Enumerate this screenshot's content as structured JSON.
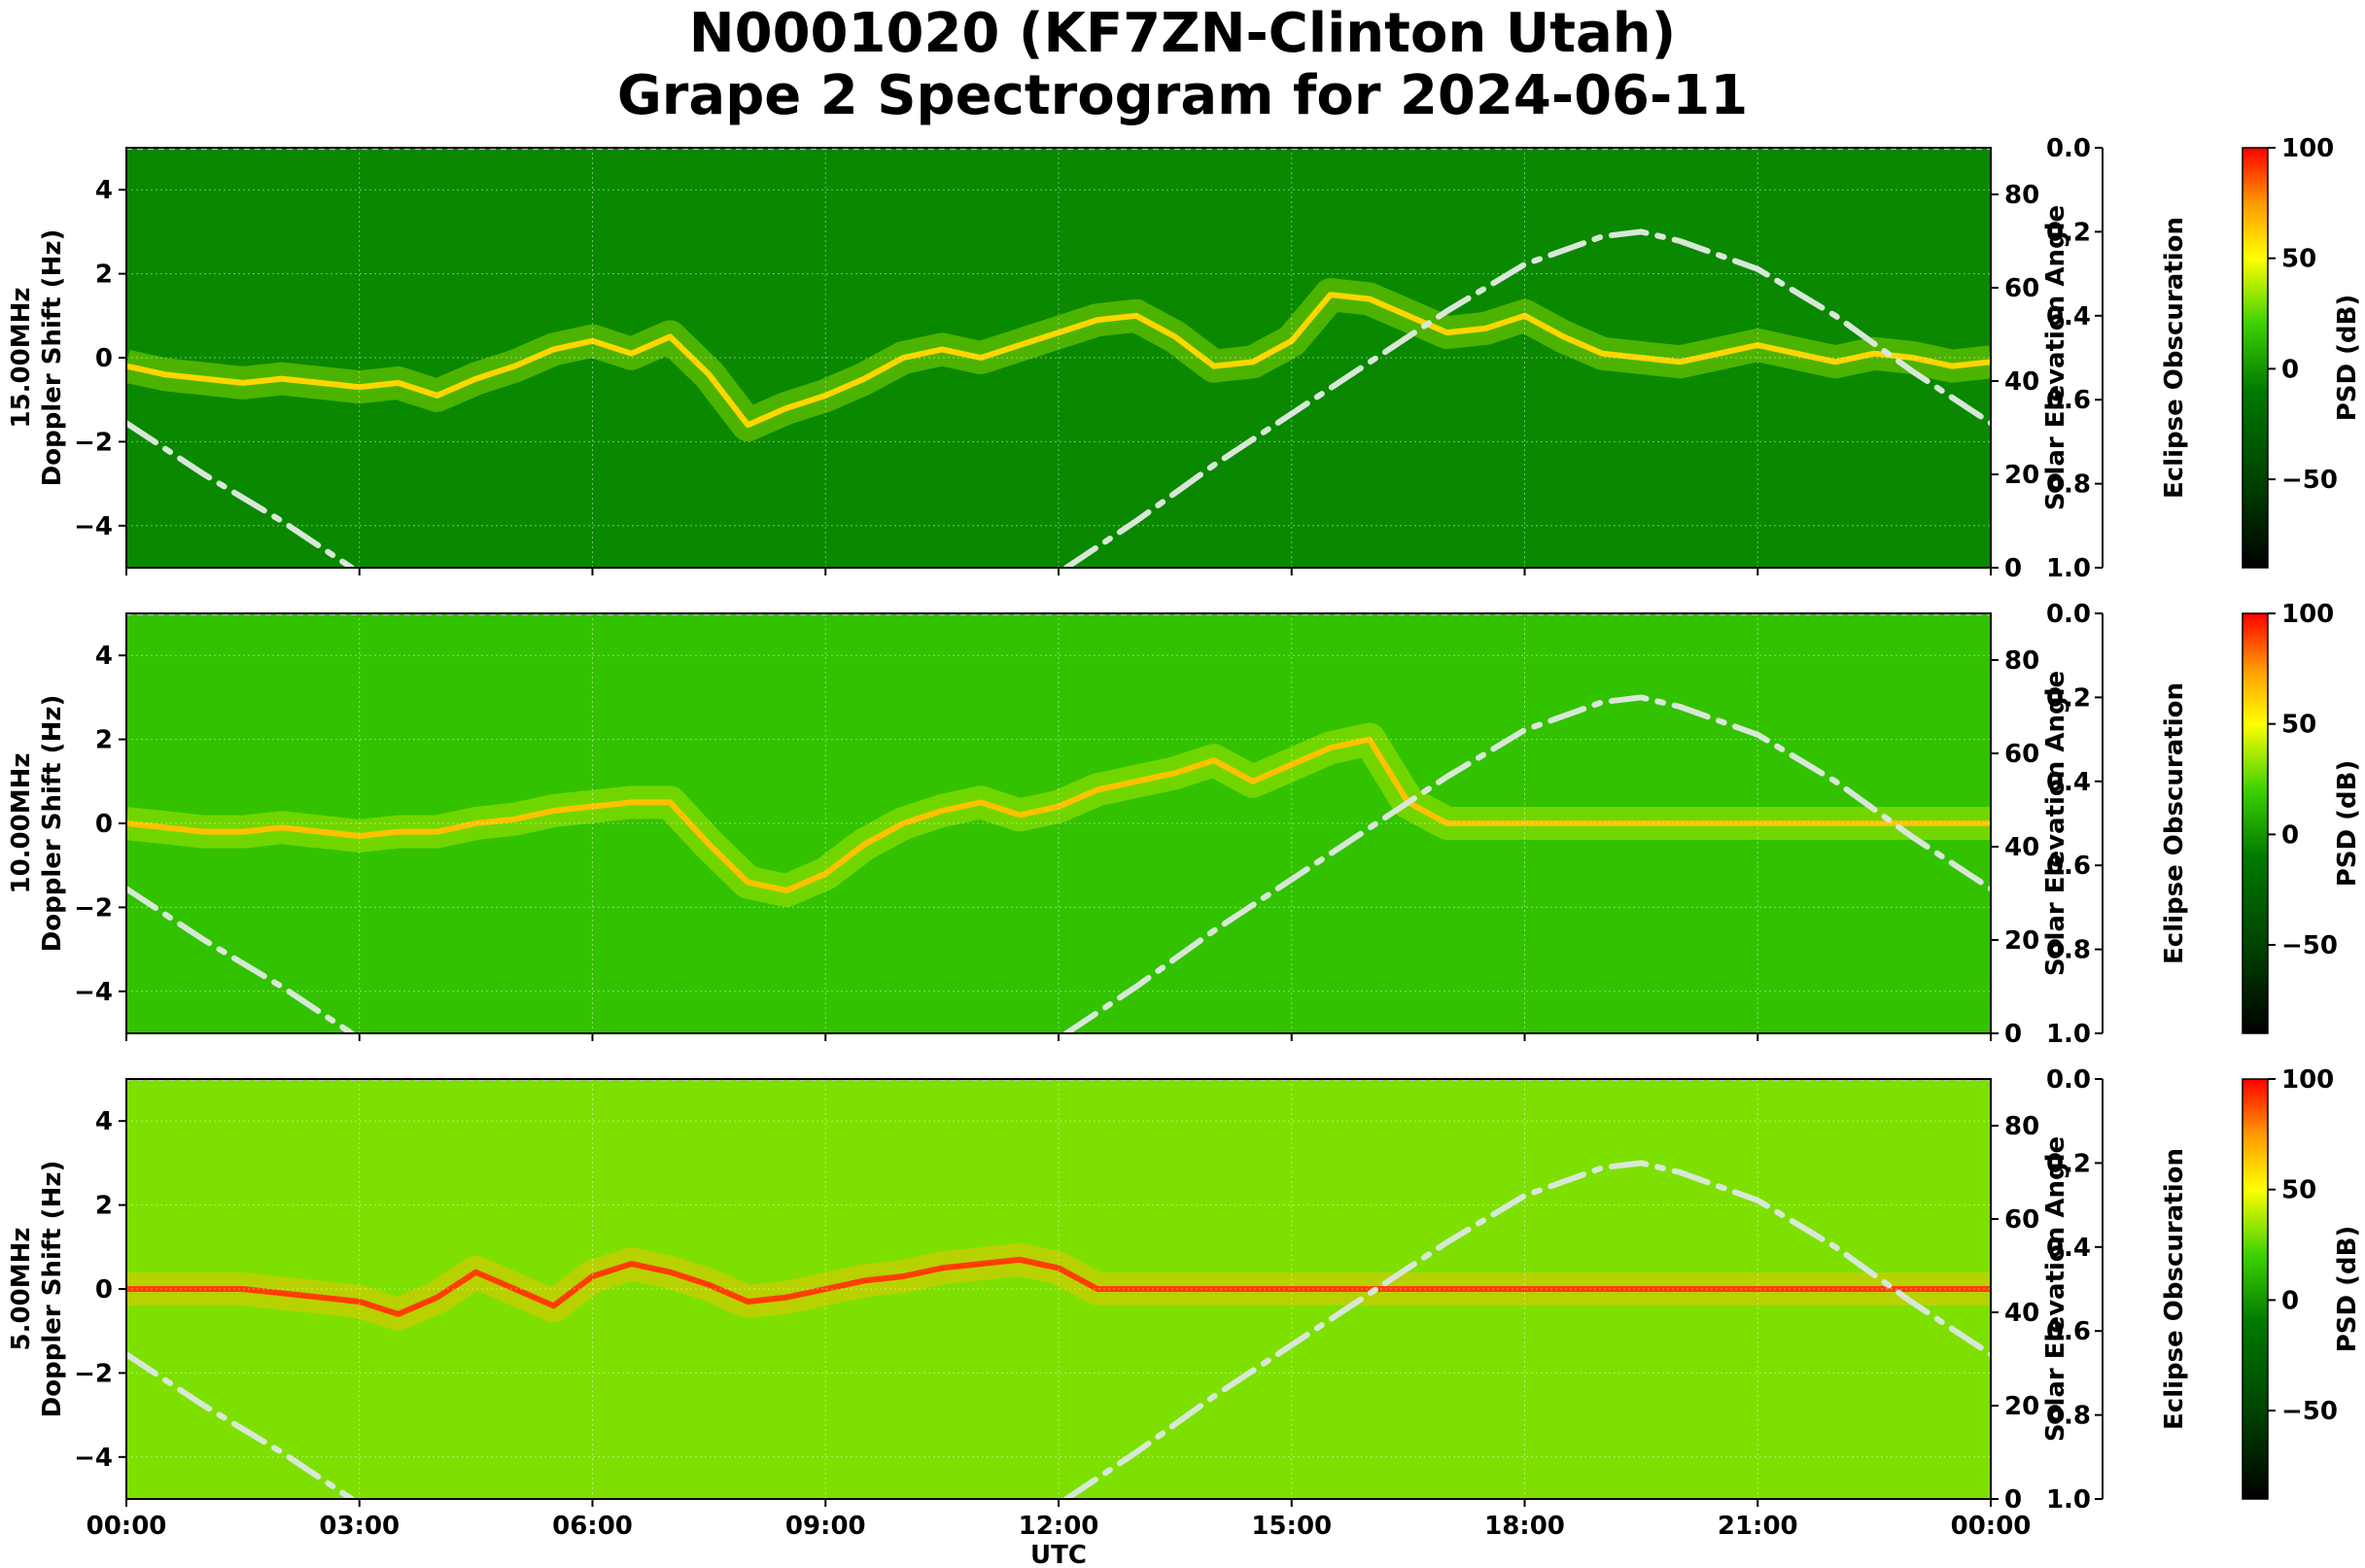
{
  "figure": {
    "title_line1": "N0001020 (KF7ZN-Clinton Utah)",
    "title_line2": "Grape 2 Spectrogram for 2024-06-11"
  },
  "colors": {
    "green": "#007a00",
    "bright_green": "#3cd000",
    "yellow": "#ffff00",
    "orange": "#ff9900",
    "red": "#ff0000",
    "black": "#000000",
    "solar_curve": "#d8e8d8"
  },
  "chart_data": [
    {
      "type": "heatmap",
      "name": "15.00MHz",
      "ylabel": "15.00MHz\nDoppler Shift (Hz)",
      "xlabel": "",
      "ylim": [
        -5,
        5
      ],
      "yticks": [
        -4,
        -2,
        0,
        2,
        4
      ],
      "xlim_hours": [
        0,
        24
      ],
      "x_tick_labels": [
        "00:00",
        "03:00",
        "06:00",
        "09:00",
        "12:00",
        "15:00",
        "18:00",
        "21:00",
        "00:00"
      ],
      "grid": true,
      "background_psd_db": -5,
      "doppler_trace": {
        "hours": [
          0,
          0.5,
          1,
          1.5,
          2,
          2.5,
          3,
          3.5,
          4,
          4.5,
          5,
          5.5,
          6,
          6.5,
          7,
          7.5,
          8,
          8.5,
          9,
          9.5,
          10,
          10.5,
          11,
          11.5,
          12,
          12.5,
          13,
          13.5,
          14,
          14.5,
          15,
          15.5,
          16,
          16.5,
          17,
          17.5,
          18,
          18.5,
          19,
          19.5,
          20,
          20.5,
          21,
          21.5,
          22,
          22.5,
          23,
          23.5,
          24
        ],
        "shift_hz": [
          -0.2,
          -0.4,
          -0.5,
          -0.6,
          -0.5,
          -0.6,
          -0.7,
          -0.6,
          -0.9,
          -0.5,
          -0.2,
          0.2,
          0.4,
          0.1,
          0.5,
          -0.4,
          -1.6,
          -1.2,
          -0.9,
          -0.5,
          0.0,
          0.2,
          0.0,
          0.3,
          0.6,
          0.9,
          1.0,
          0.5,
          -0.2,
          -0.1,
          0.4,
          1.5,
          1.4,
          1.0,
          0.6,
          0.7,
          1.0,
          0.5,
          0.1,
          0.0,
          -0.1,
          0.1,
          0.3,
          0.1,
          -0.1,
          0.1,
          0.0,
          -0.2,
          -0.1
        ],
        "psd_db": 60
      },
      "solar_elevation": {
        "axis_label": "Solar Elevation Angle",
        "ylim": [
          0,
          90
        ],
        "ticks": [
          0,
          20,
          40,
          60,
          80
        ],
        "hours": [
          0,
          1,
          2,
          2.9,
          12.1,
          13,
          14,
          15,
          16,
          17,
          18,
          19,
          19.5,
          20,
          21,
          22,
          23,
          24
        ],
        "degrees": [
          31,
          20,
          10,
          0,
          0,
          10,
          22,
          33,
          44,
          55,
          65,
          71,
          72,
          70,
          64,
          54,
          42,
          31
        ]
      },
      "eclipse_axis": {
        "label": "Eclipse Obscuration",
        "range": [
          1.0,
          0.0
        ],
        "ticks": [
          "0.0",
          "0.2",
          "0.4",
          "0.6",
          "0.8",
          "1.0"
        ]
      },
      "colorbar": {
        "label": "PSD (dB)",
        "range": [
          -90,
          100
        ],
        "ticks": [
          100,
          50,
          0,
          -50
        ],
        "tick_labels": [
          "100",
          "50",
          "0",
          "−50"
        ]
      }
    },
    {
      "type": "heatmap",
      "name": "10.00MHz",
      "ylabel": "10.00MHz\nDoppler Shift (Hz)",
      "xlabel": "",
      "ylim": [
        -5,
        5
      ],
      "yticks": [
        -4,
        -2,
        0,
        2,
        4
      ],
      "xlim_hours": [
        0,
        24
      ],
      "x_tick_labels": [
        "00:00",
        "03:00",
        "06:00",
        "09:00",
        "12:00",
        "15:00",
        "18:00",
        "21:00",
        "00:00"
      ],
      "grid": true,
      "background_psd_db": 15,
      "doppler_trace": {
        "hours": [
          0,
          0.5,
          1,
          1.5,
          2,
          2.5,
          3,
          3.5,
          4,
          4.5,
          5,
          5.5,
          6,
          6.5,
          7,
          7.5,
          8,
          8.5,
          9,
          9.5,
          10,
          10.5,
          11,
          11.5,
          12,
          12.5,
          13,
          13.5,
          14,
          14.5,
          15,
          15.5,
          16,
          16.5,
          17,
          17.5,
          18,
          18.5,
          19,
          19.5,
          20,
          20.5,
          21,
          21.5,
          22,
          22.5,
          23,
          23.5,
          24
        ],
        "shift_hz": [
          0.0,
          -0.1,
          -0.2,
          -0.2,
          -0.1,
          -0.2,
          -0.3,
          -0.2,
          -0.2,
          0.0,
          0.1,
          0.3,
          0.4,
          0.5,
          0.5,
          -0.5,
          -1.4,
          -1.6,
          -1.2,
          -0.5,
          0.0,
          0.3,
          0.5,
          0.2,
          0.4,
          0.8,
          1.0,
          1.2,
          1.5,
          1.0,
          1.4,
          1.8,
          2.0,
          0.5,
          0.0,
          0.0,
          0.0,
          0.0,
          0.0,
          0.0,
          0.0,
          0.0,
          0.0,
          0.0,
          0.0,
          0.0,
          0.0,
          0.0,
          0.0
        ],
        "psd_db": 65
      },
      "solar_elevation": {
        "axis_label": "Solar Elevation Angle",
        "ylim": [
          0,
          90
        ],
        "ticks": [
          0,
          20,
          40,
          60,
          80
        ],
        "hours": [
          0,
          1,
          2,
          2.9,
          12.1,
          13,
          14,
          15,
          16,
          17,
          18,
          19,
          19.5,
          20,
          21,
          22,
          23,
          24
        ],
        "degrees": [
          31,
          20,
          10,
          0,
          0,
          10,
          22,
          33,
          44,
          55,
          65,
          71,
          72,
          70,
          64,
          54,
          42,
          31
        ]
      },
      "eclipse_axis": {
        "label": "Eclipse Obscuration",
        "range": [
          1.0,
          0.0
        ],
        "ticks": [
          "0.0",
          "0.2",
          "0.4",
          "0.6",
          "0.8",
          "1.0"
        ]
      },
      "colorbar": {
        "label": "PSD (dB)",
        "range": [
          -90,
          100
        ],
        "ticks": [
          100,
          50,
          0,
          -50
        ],
        "tick_labels": [
          "100",
          "50",
          "0",
          "−50"
        ]
      }
    },
    {
      "type": "heatmap",
      "name": "5.00MHz",
      "ylabel": "5.00MHz\nDoppler Shift (Hz)",
      "xlabel": "UTC",
      "ylim": [
        -5,
        5
      ],
      "yticks": [
        -4,
        -2,
        0,
        2,
        4
      ],
      "xlim_hours": [
        0,
        24
      ],
      "x_tick_labels": [
        "00:00",
        "03:00",
        "06:00",
        "09:00",
        "12:00",
        "15:00",
        "18:00",
        "21:00",
        "00:00"
      ],
      "grid": true,
      "background_psd_db": 30,
      "doppler_trace": {
        "hours": [
          0,
          0.5,
          1,
          1.5,
          2,
          2.5,
          3,
          3.5,
          4,
          4.5,
          5,
          5.5,
          6,
          6.5,
          7,
          7.5,
          8,
          8.5,
          9,
          9.5,
          10,
          10.5,
          11,
          11.5,
          12,
          12.5,
          13,
          13.5,
          14,
          14.5,
          15,
          15.5,
          16,
          16.5,
          17,
          17.5,
          18,
          18.5,
          19,
          19.5,
          20,
          20.5,
          21,
          21.5,
          22,
          22.5,
          23,
          23.5,
          24
        ],
        "shift_hz": [
          0.0,
          0.0,
          0.0,
          0.0,
          -0.1,
          -0.2,
          -0.3,
          -0.6,
          -0.2,
          0.4,
          0.0,
          -0.4,
          0.3,
          0.6,
          0.4,
          0.1,
          -0.3,
          -0.2,
          0.0,
          0.2,
          0.3,
          0.5,
          0.6,
          0.7,
          0.5,
          0.0,
          0.0,
          0.0,
          0.0,
          0.0,
          0.0,
          0.0,
          0.0,
          0.0,
          0.0,
          0.0,
          0.0,
          0.0,
          0.0,
          0.0,
          0.0,
          0.0,
          0.0,
          0.0,
          0.0,
          0.0,
          0.0,
          0.0,
          0.0
        ],
        "psd_db": 90
      },
      "solar_elevation": {
        "axis_label": "Solar Elevation Angle",
        "ylim": [
          0,
          90
        ],
        "ticks": [
          0,
          20,
          40,
          60,
          80
        ],
        "hours": [
          0,
          1,
          2,
          2.9,
          12.1,
          13,
          14,
          15,
          16,
          17,
          18,
          19,
          19.5,
          20,
          21,
          22,
          23,
          24
        ],
        "degrees": [
          31,
          20,
          10,
          0,
          0,
          10,
          22,
          33,
          44,
          55,
          65,
          71,
          72,
          70,
          64,
          54,
          42,
          31
        ]
      },
      "eclipse_axis": {
        "label": "Eclipse Obscuration",
        "range": [
          1.0,
          0.0
        ],
        "ticks": [
          "0.0",
          "0.2",
          "0.4",
          "0.6",
          "0.8",
          "1.0"
        ]
      },
      "colorbar": {
        "label": "PSD (dB)",
        "range": [
          -90,
          100
        ],
        "ticks": [
          100,
          50,
          0,
          -50
        ],
        "tick_labels": [
          "100",
          "50",
          "0",
          "−50"
        ]
      }
    }
  ]
}
